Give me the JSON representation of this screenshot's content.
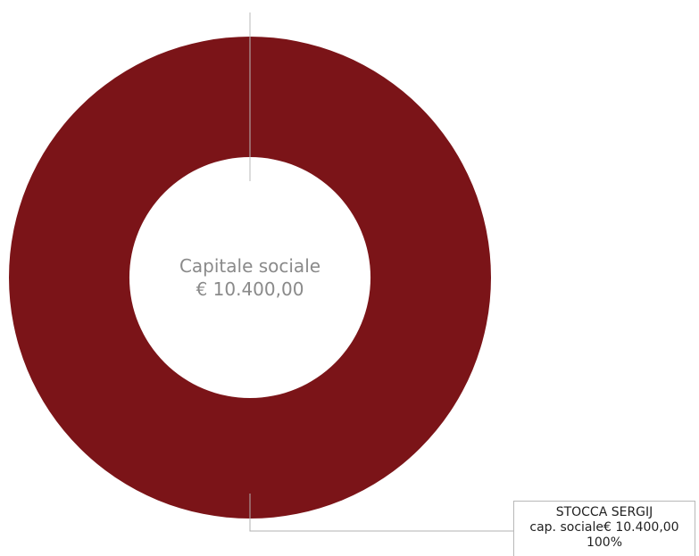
{
  "chart_data": {
    "type": "pie",
    "donut": true,
    "center_title": "Capitale sociale",
    "center_value": "€ 10.400,00",
    "slices": [
      {
        "name": "STOCCA SERGIJ",
        "value_label": "cap. sociale€ 10.400,00",
        "percent_label": "100%",
        "value": 10400,
        "percent": 100
      }
    ],
    "colors": {
      "slice": "#7b1418",
      "guide_line": "#b8b8b8",
      "center_text": "#8a8a8a"
    }
  }
}
